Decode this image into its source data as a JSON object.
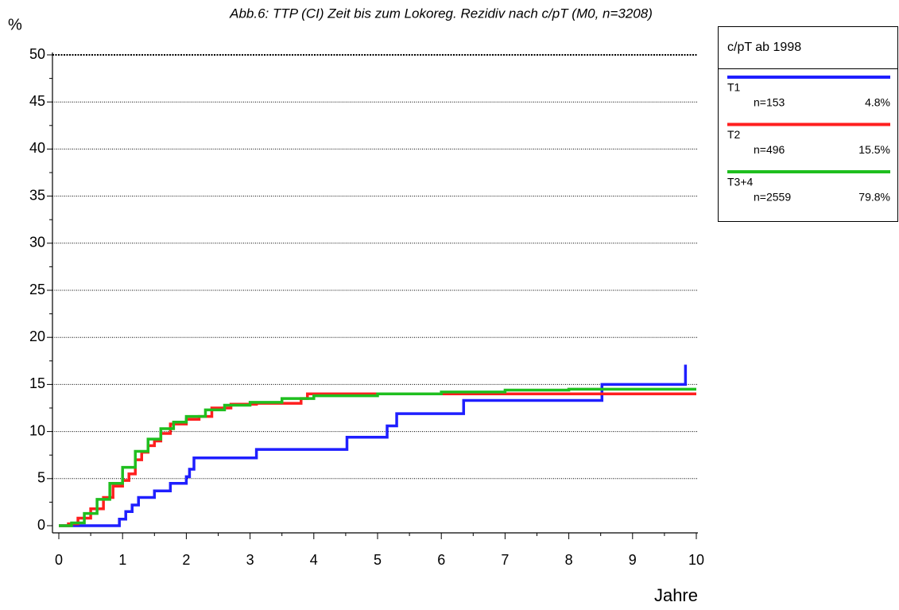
{
  "chart_data": {
    "type": "line",
    "step": "post",
    "title": "Abb.6: TTP (CI) Zeit bis zum Lokoreg. Rezidiv nach c/pT (M0, n=3208)",
    "y_label": "%",
    "x_label": "Jahre",
    "xlim": [
      0,
      10
    ],
    "xticks": [
      0,
      1,
      2,
      3,
      4,
      5,
      6,
      7,
      8,
      9,
      10
    ],
    "ylim": [
      0,
      50
    ],
    "yticks": [
      0,
      5,
      10,
      15,
      20,
      25,
      30,
      35,
      40,
      45,
      50
    ],
    "grid": true,
    "legend_title": "c/pT ab 1998",
    "legend_position": "outside-right",
    "series": [
      {
        "name": "T1",
        "n_label": "n=153",
        "share_label": "4.8%",
        "color": "#1f1fff",
        "x": [
          0,
          0.95,
          1.05,
          1.15,
          1.25,
          1.5,
          1.75,
          2.0,
          2.05,
          2.12,
          3.1,
          4.52,
          5.15,
          5.3,
          6.35,
          8.52,
          9.83
        ],
        "values": [
          0,
          0.7,
          1.5,
          2.2,
          3.0,
          3.7,
          4.5,
          5.2,
          6.0,
          7.2,
          8.1,
          9.4,
          10.6,
          11.9,
          13.3,
          15.0,
          17.1
        ]
      },
      {
        "name": "T2",
        "n_label": "n=496",
        "share_label": "15.5%",
        "color": "#ff1f1f",
        "x": [
          0,
          0.15,
          0.3,
          0.5,
          0.7,
          0.85,
          1.0,
          1.1,
          1.2,
          1.3,
          1.4,
          1.5,
          1.6,
          1.75,
          2.0,
          2.2,
          2.4,
          2.7,
          3.1,
          3.8,
          3.9,
          10.0
        ],
        "values": [
          0,
          0.2,
          0.8,
          1.8,
          3.0,
          4.2,
          4.8,
          5.5,
          7.0,
          7.8,
          8.5,
          9.0,
          9.8,
          10.8,
          11.3,
          11.6,
          12.5,
          12.9,
          13.0,
          13.5,
          14.0,
          14.0
        ]
      },
      {
        "name": "T3+4",
        "n_label": "n=2559",
        "share_label": "79.8%",
        "color": "#1fbf1f",
        "x": [
          0,
          0.2,
          0.4,
          0.6,
          0.8,
          1.0,
          1.2,
          1.4,
          1.6,
          1.8,
          2.0,
          2.3,
          2.6,
          3.0,
          3.5,
          4.0,
          5.0,
          6.0,
          7.0,
          8.0,
          10.0
        ],
        "values": [
          0,
          0.3,
          1.3,
          2.8,
          4.5,
          6.2,
          7.9,
          9.2,
          10.3,
          11.0,
          11.6,
          12.3,
          12.8,
          13.1,
          13.5,
          13.8,
          14.0,
          14.2,
          14.4,
          14.5,
          14.5
        ]
      }
    ]
  }
}
